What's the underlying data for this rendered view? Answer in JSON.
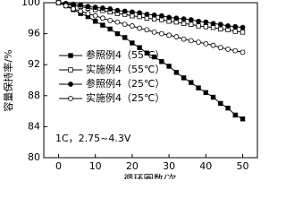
{
  "chart_data": {
    "type": "line",
    "x_label": "循环圈数/次",
    "y_label": "容量保持率/%",
    "annotation": "1C，2.75~4.3V",
    "x": [
      0,
      2,
      4,
      6,
      8,
      10,
      12,
      14,
      16,
      18,
      20,
      22,
      24,
      26,
      28,
      30,
      32,
      34,
      36,
      38,
      40,
      42,
      44,
      46,
      48,
      50
    ],
    "series": [
      {
        "name": "参照例4（55℃）",
        "color": "#000000",
        "marker": "square",
        "filled": true,
        "values": [
          100,
          99.6,
          99.1,
          98.6,
          98.2,
          97.6,
          97.1,
          96.6,
          96.0,
          95.5,
          94.8,
          94.2,
          93.5,
          93.0,
          92.4,
          91.8,
          91.0,
          90.3,
          89.7,
          89.0,
          88.4,
          87.8,
          87.0,
          86.4,
          85.5,
          85.0
        ]
      },
      {
        "name": "实施例4（55℃）",
        "color": "#000000",
        "marker": "square",
        "filled": false,
        "values": [
          100,
          99.8,
          99.6,
          99.5,
          99.3,
          99.1,
          99.0,
          98.8,
          98.6,
          98.5,
          98.3,
          98.2,
          98.0,
          97.9,
          97.8,
          97.6,
          97.5,
          97.3,
          97.2,
          97.0,
          96.9,
          96.8,
          96.6,
          96.5,
          96.3,
          96.2
        ]
      },
      {
        "name": "参照例4（25℃）",
        "color": "#000000",
        "marker": "circle",
        "filled": true,
        "values": [
          100,
          99.9,
          99.8,
          99.7,
          99.5,
          99.4,
          99.3,
          99.2,
          99.0,
          98.9,
          98.8,
          98.7,
          98.5,
          98.4,
          98.3,
          98.1,
          98.0,
          97.9,
          97.8,
          97.6,
          97.5,
          97.3,
          97.2,
          97.0,
          96.9,
          96.8
        ]
      },
      {
        "name": "实施例4（25℃）",
        "color": "#000000",
        "marker": "circle",
        "filled": false,
        "values": [
          100,
          99.6,
          99.2,
          98.9,
          98.6,
          98.3,
          98.0,
          97.7,
          97.5,
          97.2,
          97.0,
          96.7,
          96.5,
          96.2,
          96.0,
          95.8,
          95.6,
          95.3,
          95.1,
          94.9,
          94.7,
          94.5,
          94.2,
          94.0,
          93.8,
          93.6
        ]
      }
    ],
    "xlim": [
      -4,
      54
    ],
    "ylim": [
      80,
      100
    ],
    "xticks": [
      0,
      10,
      20,
      30,
      40,
      50
    ],
    "yticks": [
      80,
      84,
      88,
      92,
      96,
      100
    ]
  }
}
